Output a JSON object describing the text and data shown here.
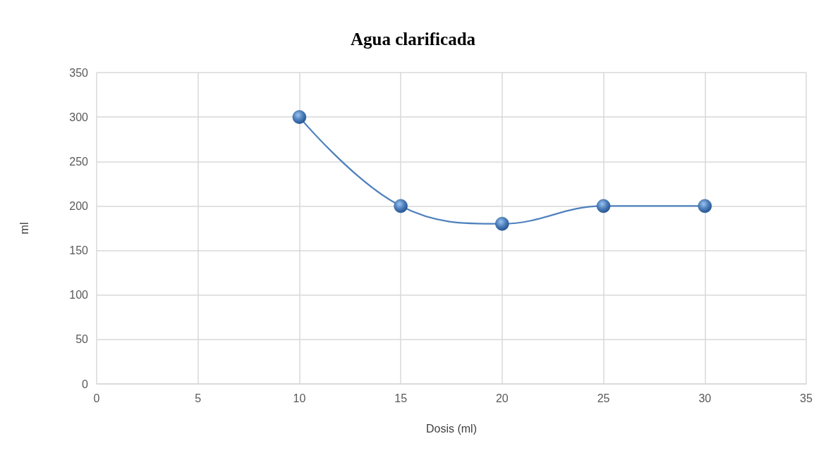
{
  "chart_data": {
    "type": "line",
    "title": "Agua clarificada",
    "xlabel": "Dosis (ml)",
    "ylabel": "ml",
    "x": [
      10,
      15,
      20,
      25,
      30
    ],
    "series": [
      {
        "color": "#4f81bd",
        "values": [
          300,
          200,
          180,
          200,
          200
        ]
      }
    ],
    "xlim": [
      0,
      35
    ],
    "xticks": [
      0,
      5,
      10,
      15,
      20,
      25,
      30,
      35
    ],
    "ylim": [
      0,
      350
    ],
    "yticks": [
      0,
      50,
      100,
      150,
      200,
      250,
      300,
      350
    ],
    "grid": true,
    "marker": "circle",
    "line_style": "solid"
  }
}
